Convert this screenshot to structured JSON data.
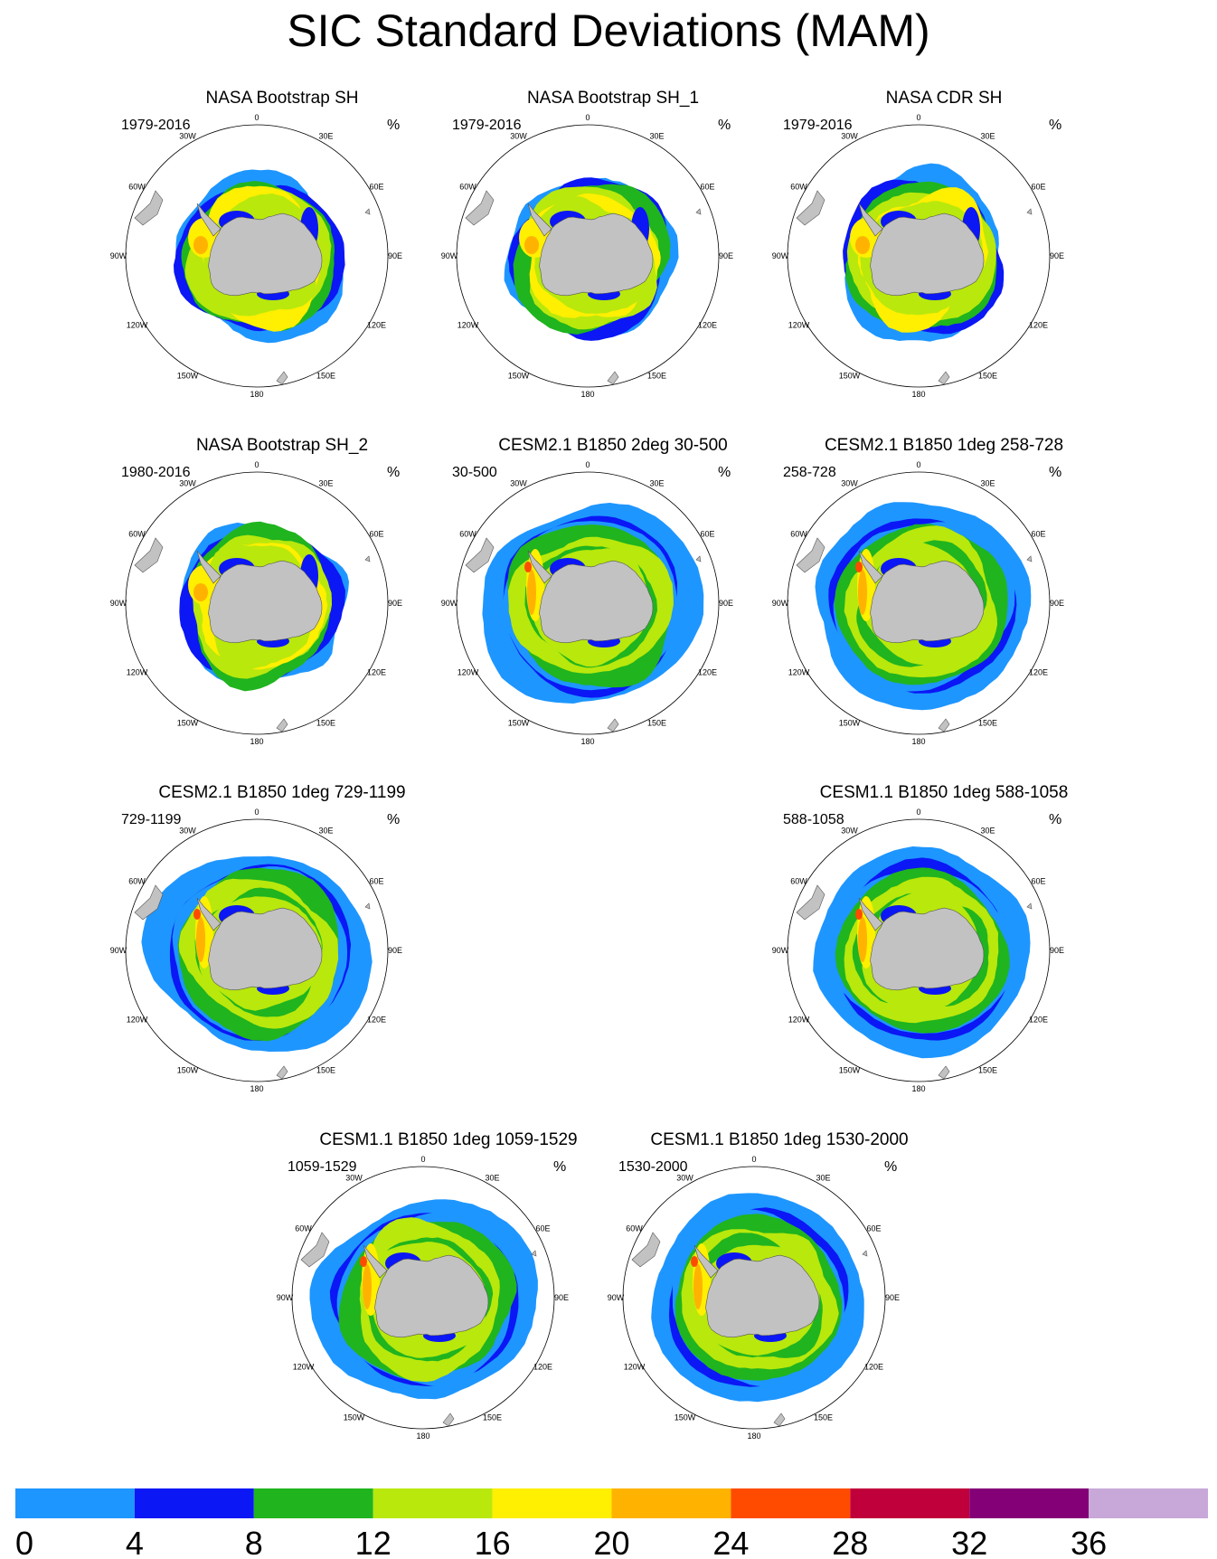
{
  "title": "SIC Standard Deviations (MAM)",
  "unit": "%",
  "lon_labels": [
    "0",
    "30E",
    "60E",
    "90E",
    "120E",
    "150E",
    "180",
    "150W",
    "120W",
    "90W",
    "60W",
    "30W"
  ],
  "panels": [
    {
      "title": "NASA Bootstrap SH",
      "period": "1979-2016",
      "type": "obs"
    },
    {
      "title": "NASA Bootstrap SH_1",
      "period": "1979-2016",
      "type": "obs"
    },
    {
      "title": "NASA CDR SH",
      "period": "1979-2016",
      "type": "obs"
    },
    {
      "title": "NASA Bootstrap SH_2",
      "period": "1980-2016",
      "type": "obs"
    },
    {
      "title": "CESM2.1 B1850 2deg 30-500",
      "period": "30-500",
      "type": "model"
    },
    {
      "title": "CESM2.1 B1850 1deg 258-728",
      "period": "258-728",
      "type": "model"
    },
    {
      "title": "CESM2.1 B1850 1deg 729-1199",
      "period": "729-1199",
      "type": "model"
    },
    {
      "title": "CESM1.1 B1850 1deg 588-1058",
      "period": "588-1058",
      "type": "model"
    },
    {
      "title": "CESM1.1 B1850 1deg 1059-1529",
      "period": "1059-1529",
      "type": "model"
    },
    {
      "title": "CESM1.1 B1850 1deg 1530-2000",
      "period": "1530-2000",
      "type": "model"
    }
  ],
  "colorbar": {
    "levels": [
      "0",
      "4",
      "8",
      "12",
      "16",
      "20",
      "24",
      "28",
      "32",
      "36"
    ],
    "colors": [
      "#1e96ff",
      "#0b17f5",
      "#20b41e",
      "#b9e80c",
      "#ffef00",
      "#ffb300",
      "#ff4b00",
      "#c0003a",
      "#830077",
      "#c8a8d8"
    ]
  },
  "map_colors": {
    "land": "#c2c2c2",
    "ocean": "#ffffff",
    "outline": "#555555"
  }
}
